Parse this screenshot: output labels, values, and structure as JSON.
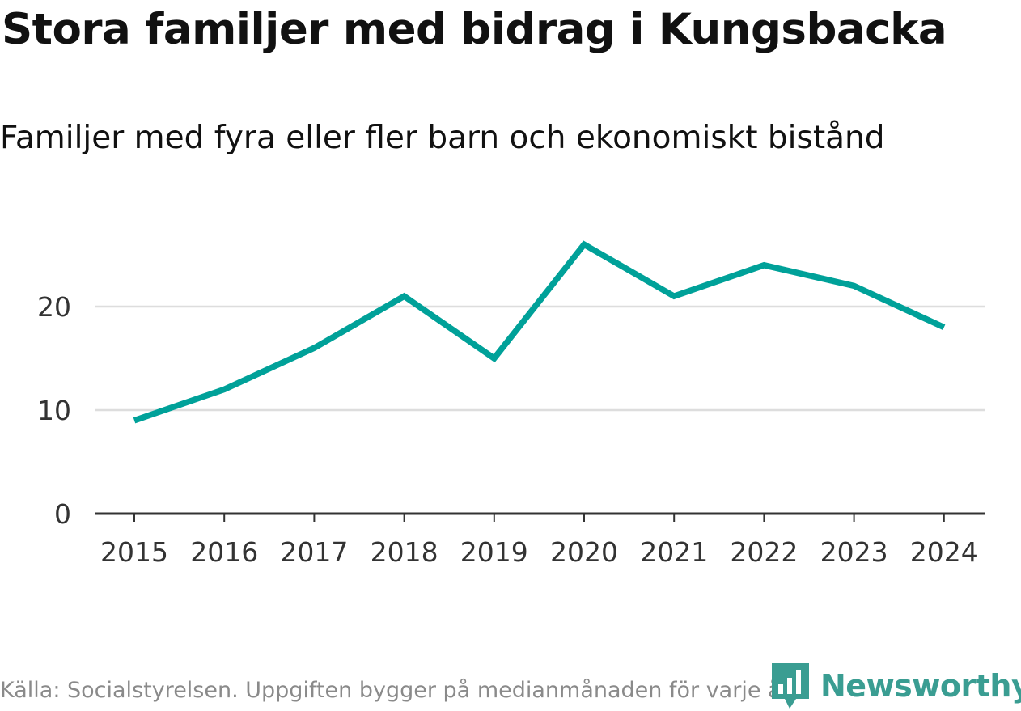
{
  "chart_data": {
    "type": "line",
    "title": "Stora familjer med bidrag i Kungsbacka",
    "subtitle": "Familjer med fyra eller fler barn och ekonomiskt bistånd",
    "x": [
      "2015",
      "2016",
      "2017",
      "2018",
      "2019",
      "2020",
      "2021",
      "2022",
      "2023",
      "2024"
    ],
    "series": [
      {
        "name": "Familjer",
        "values": [
          9,
          12,
          16,
          21,
          15,
          26,
          21,
          24,
          22,
          18
        ]
      }
    ],
    "yticks": [
      "0",
      "10",
      "20"
    ],
    "ylim": [
      0,
      30
    ],
    "grid": true,
    "line_color": "#00a199",
    "xlabel": "",
    "ylabel": ""
  },
  "footer": {
    "source": "Källa: Socialstyrelsen. Uppgiften bygger på medianmånaden för varje år",
    "brand": "Newsworthy",
    "brand_icon": "newsworthy-logo-icon",
    "brand_color": "#3a9d92"
  }
}
